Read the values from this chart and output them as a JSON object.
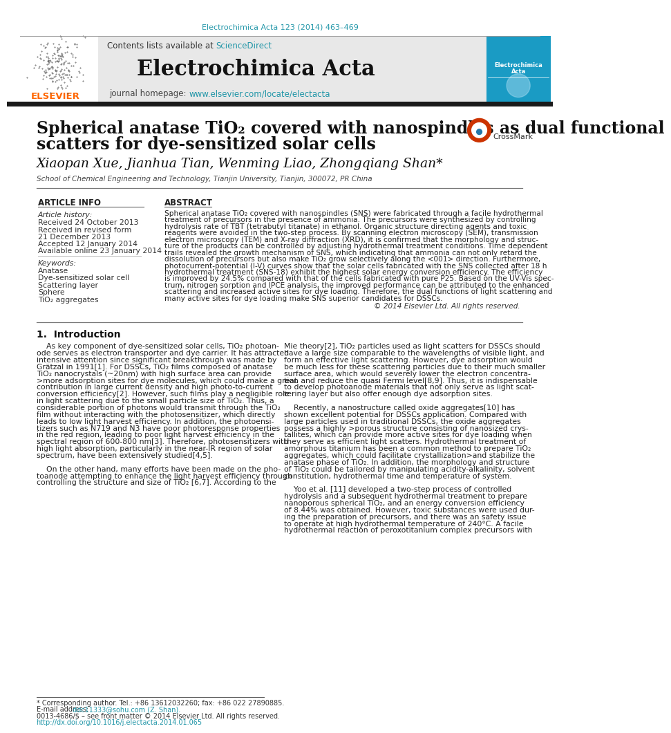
{
  "page_title_citation": "Electrochimica Acta 123 (2014) 463–469",
  "journal_name": "Electrochimica Acta",
  "contents_text": "Contents lists available at ",
  "science_direct": "ScienceDirect",
  "journal_homepage": "journal homepage: ",
  "homepage_url": "www.elsevier.com/locate/electacta",
  "elsevier_text": "ELSEVIER",
  "paper_title_line1": "Spherical anatase TiO₂ covered with nanospindles as dual functional",
  "paper_title_line2": "scatters for dye-sensitized solar cells",
  "authors": "Xiaopan Xue, Jianhua Tian, Wenming Liao, Zhongqiang Shan*",
  "affiliation": "School of Chemical Engineering and Technology, Tianjin University, Tianjin, 300072, PR China",
  "article_info_header": "ARTICLE INFO",
  "abstract_header": "ABSTRACT",
  "article_history_label": "Article history:",
  "received_date": "Received 24 October 2013",
  "received_revised": "Received in revised form",
  "revised_date": "21 December 2013",
  "accepted": "Accepted 12 January 2014",
  "available": "Available online 23 January 2014",
  "keywords_label": "Keywords:",
  "keywords": [
    "Anatase",
    "Dye-sensitized solar cell",
    "Scattering layer",
    "Sphere",
    "TiO₂ aggregates"
  ],
  "copyright": "© 2014 Elsevier Ltd. All rights reserved.",
  "intro_header": "1.  Introduction",
  "footnote": "* Corresponding author. Tel.: +86 13612032260; fax: +86 022 27890885.",
  "email_label": "E-mail address: ",
  "email": "ddc11333@sohu.com (Z. Shan).",
  "issn": "0013-4686/$ – see front matter © 2014 Elsevier Ltd. All rights reserved.",
  "doi": "http://dx.doi.org/10.1016/j.electacta.2014.01.065",
  "bg_color": "#ffffff",
  "elsevier_color": "#ff6600",
  "link_color": "#2196a8",
  "abstract_lines": [
    "Spherical anatase TiO₂ covered with nanospindles (SNS) were fabricated through a facile hydrothermal",
    "treatment of precursors in the presence of ammonia. The precursors were synthesized by controlling",
    "hydrolysis rate of TBT (tetrabutyl titanate) in ethanol. Organic structure directing agents and toxic",
    "reagents were avoided in the two-step process. By scanning electron microscopy (SEM), transmission",
    "electron microscopy (TEM) and X-ray diffraction (XRD), it is confirmed that the morphology and struc-",
    "ture of the products can be controlled by adjusting hydrothermal treatment conditions. Time dependent",
    "trails revealed the growth mechanism of SNS, which indicating that ammonia can not only retard the",
    "dissolution of precursors but also make TiO₂ grow selectively along the <001> direction. Furthermore,",
    "photocurrent-potential (I-V) curves show that the solar cells fabricated with the SNS collected after 18 h",
    "hydrothermal treatment (SNS-18) exhibit the highest solar energy conversion efficiency. The efficiency",
    "is improved by 24.5% compared with that of the cells fabricated with pure P25. Based on the UV-Vis spec-",
    "trum, nitrogen sorption and IPCE analysis, the improved performance can be attributed to the enhanced",
    "scattering and increased active sites for dye loading. Therefore, the dual functions of light scattering and",
    "many active sites for dye loading make SNS superior candidates for DSSCs."
  ],
  "intro_left_lines": [
    "    As key component of dye-sensitized solar cells, TiO₂ photoan-",
    "ode serves as electron transporter and dye carrier. It has attracted",
    "intensive attention since significant breakthrough was made by",
    "Grätzal in 1991[1]. For DSSCs, TiO₂ films composed of anatase",
    "TiO₂ nanocrystals (~20nm) with high surface area can provide",
    ">more adsorption sites for dye molecules, which could make a great",
    "contribution in large current density and high photo-to-current",
    "conversion efficiency[2]. However, such films play a negligible role",
    "in light scattering due to the small particle size of TiO₂. Thus, a",
    "considerable portion of photons would transmit through the TiO₂",
    "film without interacting with the photosensitizer, which directly",
    "leads to low light harvest efficiency. In addition, the photoensi-",
    "tizers such as N719 and N3 have poor photoresponse properties",
    "in the red region, leading to poor light harvest efficiency in the",
    "spectral region of 600-800 nm[3]. Therefore, photosensitizers with",
    "high light absorption, particularly in the near-IR region of solar",
    "spectrum, have been extensively studied[4,5].",
    "",
    "    On the other hand, many efforts have been made on the pho-",
    "toanode attempting to enhance the light harvest efficiency through",
    "controlling the structure and size of TiO₂ [6,7]. According to the"
  ],
  "intro_right_lines": [
    "Mie theory[2], TiO₂ particles used as light scatters for DSSCs should",
    "have a large size comparable to the wavelengths of visible light, and",
    "form an effective light scattering. However, dye adsorption would",
    "be much less for these scattering particles due to their much smaller",
    "surface area, which would severely lower the electron concentra-",
    "tion and reduce the quasi Fermi level[8,9]. Thus, it is indispensable",
    "to develop photoanode materials that not only serve as light scat-",
    "tering layer but also offer enough dye adsorption sites.",
    "",
    "    Recently, a nanostructure called oxide aggregates[10] has",
    "shown excellent potential for DSSCs application. Compared with",
    "large particles used in traditional DSSCs, the oxide aggregates",
    "possess a highly >porous structure consisting of nanosized crys-",
    "tallites, which can provide more active sites for dye loading when",
    "they serve as efficient light scatters. Hydrothermal treatment of",
    "amorphous titanium has been a common method to prepare TiO₂",
    "aggregates, which could facilitate crystallization>and stabilize the",
    "anatase phase of TiO₂. In addition, the morphology and structure",
    "of TiO₂ could be tailored by manipulating acidity-alkalinity, solvent",
    "constitution, hydrothermal time and temperature of system.",
    "",
    "    Yoo et al. [11] developed a two-step process of controlled",
    "hydrolysis and a subsequent hydrothermal treatment to prepare",
    "nanoporous spherical TiO₂, and an energy conversion efficiency",
    "of 8.44% was obtained. However, toxic substances were used dur-",
    "ing the preparation of precursors, and there was an safety issue",
    "to operate at high hydrothermal temperature of 240°C. A facile",
    "hydrothermal reaction of peroxotitanium complex precursors with"
  ]
}
